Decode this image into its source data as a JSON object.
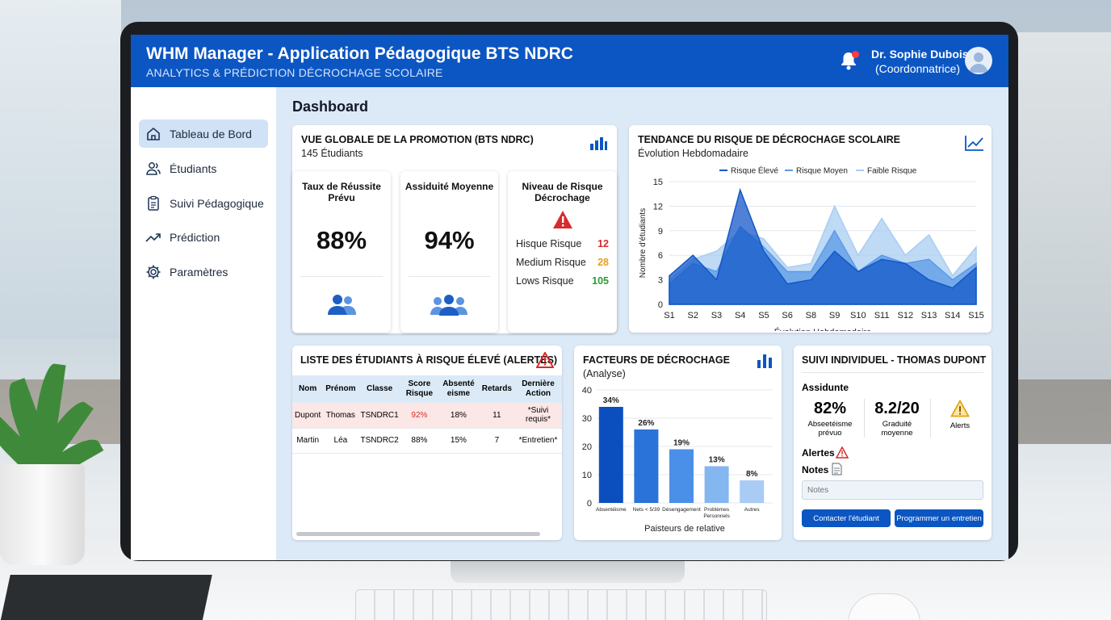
{
  "header": {
    "title": "WHM Manager - Application Pédagogique BTS NDRC",
    "subtitle": "ANALYTICS & PRÉDICTION DÉCROCHAGE SCOLAIRE",
    "user_name": "Dr. Sophie Dubois",
    "user_role": "(Coordonnatrice)"
  },
  "sidebar": {
    "items": [
      {
        "label": "Tableau de Bord",
        "icon": "home-icon",
        "active": true
      },
      {
        "label": "Étudiants",
        "icon": "users-icon"
      },
      {
        "label": "Suivi Pédagogique",
        "icon": "clipboard-icon"
      },
      {
        "label": "Prédiction",
        "icon": "trend-icon"
      },
      {
        "label": "Paramètres",
        "icon": "gear-icon"
      }
    ]
  },
  "main": {
    "title": "Dashboard"
  },
  "overview": {
    "title": "VUE GLOBALE DE LA PROMOTION (BTS NDRC)",
    "subtitle": "145 Étudiants",
    "kpis": [
      {
        "label": "Taux de Réussite Prévu",
        "value": "88%"
      },
      {
        "label": "Assiduité Moyenne",
        "value": "94%"
      }
    ],
    "risk": {
      "label": "Niveau de Risque Décrochage",
      "rows": [
        {
          "label": "Hisque Risque",
          "value": "12",
          "color": "#d92b2b"
        },
        {
          "label": "Medium Risque",
          "value": "28",
          "color": "#e3a21a"
        },
        {
          "label": "Lows Risque",
          "value": "105",
          "color": "#2e9a36"
        }
      ]
    }
  },
  "trend": {
    "title": "TENDANCE DU RISQUE DE DÉCROCHAGE SCOLAIRE",
    "subtitle": "Évolution Hebdomadaire"
  },
  "alerts": {
    "title": "LISTE DES ÉTUDIANTS À RISQUE ÉLEVÉ (ALERTES)",
    "columns": [
      "Nom",
      "Prénom",
      "Classe",
      "Score Risque",
      "Absenté eisme",
      "Retards",
      "Dernière Action"
    ],
    "rows": [
      [
        "Dupont",
        "Thomas",
        "TSNDRC1",
        "92%",
        "18%",
        "11",
        "*Suivi requis*"
      ],
      [
        "Martin",
        "Léa",
        "TSNDRC2",
        "88%",
        "15%",
        "7",
        "*Entretien*"
      ]
    ]
  },
  "factors": {
    "title": "FACTEURS DE DÉCROCHAGE",
    "subtitle": "(Analyse)"
  },
  "individual": {
    "title": "SUIVI INDIVIDUEL - THOMAS DUPONT",
    "section_assiduite": "Assidunte",
    "stat1_value": "82%",
    "stat1_label": "Abseetéisme prévuo",
    "stat2_value": "8.2/20",
    "stat2_label": "Graduité moyenne",
    "stat3_label": "Alerts",
    "alerts_label": "Alertes",
    "notes_label": "Notes",
    "notes_placeholder": "Notes",
    "btn_contact": "Contacter l'étudiant",
    "btn_schedule": "Programmer un entretien"
  },
  "chart_data": [
    {
      "type": "area",
      "title": "",
      "xlabel": "Évolution Hebdomadaire",
      "ylabel": "Nombre d'étudiants",
      "ylim": [
        0,
        15
      ],
      "yticks": [
        0,
        3,
        6,
        9,
        12,
        15
      ],
      "x": [
        "S1",
        "S2",
        "S3",
        "S4",
        "S5",
        "S6",
        "S8",
        "S9",
        "S10",
        "S11",
        "S12",
        "S13",
        "S14",
        "S15"
      ],
      "legend": "top",
      "grid": true,
      "series": [
        {
          "name": "Faible Risque",
          "color": "#a9cdf2",
          "values": [
            3,
            5.5,
            6.5,
            9,
            8,
            4.5,
            5,
            12,
            6,
            10.5,
            6,
            8.5,
            3.5,
            7
          ]
        },
        {
          "name": "Risque Moyen",
          "color": "#5c9ae6",
          "values": [
            2.5,
            5,
            4,
            9.5,
            7,
            4,
            4,
            9,
            4,
            6,
            5,
            5.5,
            3,
            5
          ]
        },
        {
          "name": "Risque Élevé",
          "color": "#1458c8",
          "values": [
            3.5,
            6,
            3,
            14,
            6.5,
            2.5,
            3,
            6.5,
            4,
            5.5,
            5,
            3,
            2,
            4.5
          ]
        }
      ]
    },
    {
      "type": "bar",
      "title": "",
      "xlabel": "Paisteurs de relative",
      "ylim": [
        0,
        40
      ],
      "yticks": [
        0,
        10,
        20,
        30,
        40
      ],
      "categories": [
        "Absentéisme",
        "Nets < 5/39",
        "Désengagement",
        "Problèmes Personnels",
        "Autres"
      ],
      "values": [
        34,
        26,
        19,
        13,
        8
      ],
      "value_labels": [
        "34%",
        "26%",
        "19%",
        "13%",
        "8%"
      ],
      "colors": [
        "#0b4fbf",
        "#2a73d9",
        "#4b90e8",
        "#84b6f0",
        "#a9ccf4"
      ]
    }
  ]
}
